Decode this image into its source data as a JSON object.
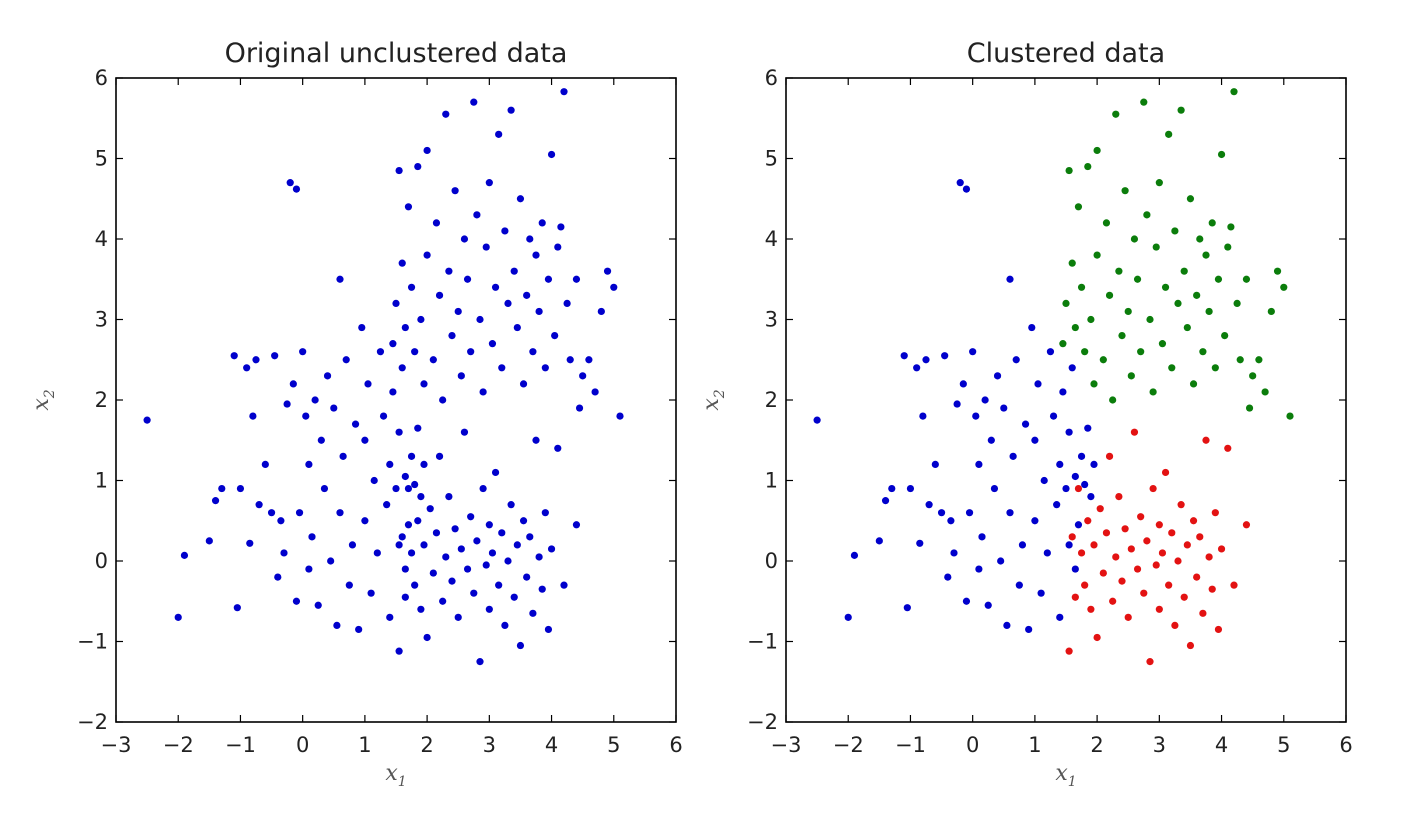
{
  "chart_data": [
    {
      "type": "scatter",
      "title": "Original unclustered data",
      "xlabel": "x1",
      "ylabel": "x2",
      "xlabel_parts": [
        "x",
        "1"
      ],
      "ylabel_parts": [
        "x",
        "2"
      ],
      "xlim": [
        -3,
        6
      ],
      "ylim": [
        -2,
        6
      ],
      "xticks": [
        "−3",
        "−2",
        "−1",
        "0",
        "1",
        "2",
        "3",
        "4",
        "5",
        "6"
      ],
      "yticks": [
        "−2",
        "−1",
        "0",
        "1",
        "2",
        "3",
        "4",
        "5",
        "6"
      ],
      "grid": false,
      "legend": "none",
      "cluster_refs": [
        "blue",
        "green",
        "red"
      ],
      "colors": {
        "blue": "#0000cc",
        "green": "#0b7d0b",
        "red": "#e31212"
      },
      "single_color": "#0000cc"
    },
    {
      "type": "scatter",
      "title": "Clustered data",
      "xlabel": "x1",
      "ylabel": "x2",
      "xlabel_parts": [
        "x",
        "1"
      ],
      "ylabel_parts": [
        "x",
        "2"
      ],
      "xlim": [
        -3,
        6
      ],
      "ylim": [
        -2,
        6
      ],
      "xticks": [
        "−3",
        "−2",
        "−1",
        "0",
        "1",
        "2",
        "3",
        "4",
        "5",
        "6"
      ],
      "yticks": [
        "−2",
        "−1",
        "0",
        "1",
        "2",
        "3",
        "4",
        "5",
        "6"
      ],
      "grid": false,
      "legend": "none",
      "series": [
        {
          "color": "#0000cc",
          "points": [
            [
              -2.5,
              1.75
            ],
            [
              -2.0,
              -0.7
            ],
            [
              -1.9,
              0.07
            ],
            [
              -1.5,
              0.25
            ],
            [
              -1.4,
              0.75
            ],
            [
              -1.3,
              0.9
            ],
            [
              -1.1,
              2.55
            ],
            [
              -1.05,
              -0.58
            ],
            [
              -1.0,
              0.9
            ],
            [
              -0.9,
              2.4
            ],
            [
              -0.85,
              0.22
            ],
            [
              -0.8,
              1.8
            ],
            [
              -0.75,
              2.5
            ],
            [
              -0.7,
              0.7
            ],
            [
              -0.6,
              1.2
            ],
            [
              -0.5,
              0.6
            ],
            [
              -0.45,
              2.55
            ],
            [
              -0.4,
              -0.2
            ],
            [
              -0.35,
              0.5
            ],
            [
              -0.3,
              0.1
            ],
            [
              -0.25,
              1.95
            ],
            [
              -0.2,
              4.7
            ],
            [
              -0.15,
              2.2
            ],
            [
              -0.1,
              4.62
            ],
            [
              -0.1,
              -0.5
            ],
            [
              -0.05,
              0.6
            ],
            [
              0.0,
              2.6
            ],
            [
              0.05,
              1.8
            ],
            [
              0.1,
              1.2
            ],
            [
              0.1,
              -0.1
            ],
            [
              0.15,
              0.3
            ],
            [
              0.2,
              2.0
            ],
            [
              0.25,
              -0.55
            ],
            [
              0.3,
              1.5
            ],
            [
              0.35,
              0.9
            ],
            [
              0.4,
              2.3
            ],
            [
              0.45,
              0.0
            ],
            [
              0.5,
              1.9
            ],
            [
              0.55,
              -0.8
            ],
            [
              0.6,
              3.5
            ],
            [
              0.6,
              0.6
            ],
            [
              0.65,
              1.3
            ],
            [
              0.7,
              2.5
            ],
            [
              0.75,
              -0.3
            ],
            [
              0.8,
              0.2
            ],
            [
              0.85,
              1.7
            ],
            [
              0.9,
              -0.85
            ],
            [
              0.95,
              2.9
            ],
            [
              1.0,
              0.5
            ],
            [
              1.0,
              1.5
            ],
            [
              1.05,
              2.2
            ],
            [
              1.1,
              -0.4
            ],
            [
              1.15,
              1.0
            ],
            [
              1.2,
              0.1
            ],
            [
              1.25,
              2.6
            ],
            [
              1.3,
              1.8
            ],
            [
              1.35,
              0.7
            ],
            [
              1.4,
              -0.7
            ],
            [
              1.4,
              1.2
            ],
            [
              1.45,
              2.1
            ],
            [
              1.5,
              0.9
            ],
            [
              1.55,
              0.2
            ],
            [
              1.55,
              1.6
            ],
            [
              1.6,
              2.4
            ],
            [
              1.65,
              -0.1
            ],
            [
              1.65,
              1.05
            ],
            [
              1.7,
              0.45
            ],
            [
              1.75,
              1.3
            ],
            [
              1.8,
              0.95
            ],
            [
              1.85,
              1.65
            ],
            [
              1.9,
              0.8
            ],
            [
              1.95,
              1.2
            ]
          ]
        },
        {
          "color": "#0b7d0b",
          "points": [
            [
              1.45,
              2.7
            ],
            [
              1.5,
              3.2
            ],
            [
              1.55,
              4.85
            ],
            [
              1.6,
              3.7
            ],
            [
              1.65,
              2.9
            ],
            [
              1.7,
              4.4
            ],
            [
              1.75,
              3.4
            ],
            [
              1.8,
              2.6
            ],
            [
              1.85,
              4.9
            ],
            [
              1.9,
              3.0
            ],
            [
              1.95,
              2.2
            ],
            [
              2.0,
              5.1
            ],
            [
              2.0,
              3.8
            ],
            [
              2.1,
              2.5
            ],
            [
              2.15,
              4.2
            ],
            [
              2.2,
              3.3
            ],
            [
              2.25,
              2.0
            ],
            [
              2.3,
              5.55
            ],
            [
              2.35,
              3.6
            ],
            [
              2.4,
              2.8
            ],
            [
              2.45,
              4.6
            ],
            [
              2.5,
              3.1
            ],
            [
              2.55,
              2.3
            ],
            [
              2.6,
              4.0
            ],
            [
              2.65,
              3.5
            ],
            [
              2.7,
              2.6
            ],
            [
              2.75,
              5.7
            ],
            [
              2.8,
              4.3
            ],
            [
              2.85,
              3.0
            ],
            [
              2.9,
              2.1
            ],
            [
              2.95,
              3.9
            ],
            [
              3.0,
              4.7
            ],
            [
              3.05,
              2.7
            ],
            [
              3.1,
              3.4
            ],
            [
              3.15,
              5.3
            ],
            [
              3.2,
              2.4
            ],
            [
              3.25,
              4.1
            ],
            [
              3.3,
              3.2
            ],
            [
              3.35,
              5.6
            ],
            [
              3.4,
              3.6
            ],
            [
              3.45,
              2.9
            ],
            [
              3.5,
              4.5
            ],
            [
              3.55,
              2.2
            ],
            [
              3.6,
              3.3
            ],
            [
              3.65,
              4.0
            ],
            [
              3.7,
              2.6
            ],
            [
              3.75,
              3.8
            ],
            [
              3.8,
              3.1
            ],
            [
              3.85,
              4.2
            ],
            [
              3.9,
              2.4
            ],
            [
              3.95,
              3.5
            ],
            [
              4.0,
              5.05
            ],
            [
              4.05,
              2.8
            ],
            [
              4.1,
              3.9
            ],
            [
              4.15,
              4.15
            ],
            [
              4.2,
              5.83
            ],
            [
              4.25,
              3.2
            ],
            [
              4.3,
              2.5
            ],
            [
              4.4,
              3.5
            ],
            [
              4.45,
              1.9
            ],
            [
              4.5,
              2.3
            ],
            [
              4.6,
              2.5
            ],
            [
              4.7,
              2.1
            ],
            [
              4.8,
              3.1
            ],
            [
              4.9,
              3.6
            ],
            [
              5.0,
              3.4
            ],
            [
              5.1,
              1.8
            ]
          ]
        },
        {
          "color": "#e31212",
          "points": [
            [
              1.55,
              -1.12
            ],
            [
              1.6,
              0.3
            ],
            [
              1.65,
              -0.45
            ],
            [
              1.7,
              0.9
            ],
            [
              1.75,
              0.1
            ],
            [
              1.8,
              -0.3
            ],
            [
              1.85,
              0.5
            ],
            [
              1.9,
              -0.6
            ],
            [
              1.95,
              0.2
            ],
            [
              2.0,
              -0.95
            ],
            [
              2.05,
              0.65
            ],
            [
              2.1,
              -0.15
            ],
            [
              2.15,
              0.35
            ],
            [
              2.2,
              1.3
            ],
            [
              2.25,
              -0.5
            ],
            [
              2.3,
              0.05
            ],
            [
              2.35,
              0.8
            ],
            [
              2.4,
              -0.25
            ],
            [
              2.45,
              0.4
            ],
            [
              2.5,
              -0.7
            ],
            [
              2.55,
              0.15
            ],
            [
              2.6,
              1.6
            ],
            [
              2.65,
              -0.1
            ],
            [
              2.7,
              0.55
            ],
            [
              2.75,
              -0.4
            ],
            [
              2.8,
              0.25
            ],
            [
              2.85,
              -1.25
            ],
            [
              2.9,
              0.9
            ],
            [
              2.95,
              -0.05
            ],
            [
              3.0,
              0.45
            ],
            [
              3.0,
              -0.6
            ],
            [
              3.05,
              0.1
            ],
            [
              3.1,
              1.1
            ],
            [
              3.15,
              -0.3
            ],
            [
              3.2,
              0.35
            ],
            [
              3.25,
              -0.8
            ],
            [
              3.3,
              0.0
            ],
            [
              3.35,
              0.7
            ],
            [
              3.4,
              -0.45
            ],
            [
              3.45,
              0.2
            ],
            [
              3.5,
              -1.05
            ],
            [
              3.55,
              0.5
            ],
            [
              3.6,
              -0.2
            ],
            [
              3.65,
              0.3
            ],
            [
              3.7,
              -0.65
            ],
            [
              3.75,
              1.5
            ],
            [
              3.8,
              0.05
            ],
            [
              3.85,
              -0.35
            ],
            [
              3.9,
              0.6
            ],
            [
              3.95,
              -0.85
            ],
            [
              4.0,
              0.15
            ],
            [
              4.1,
              1.4
            ],
            [
              4.2,
              -0.3
            ],
            [
              4.4,
              0.45
            ]
          ]
        }
      ]
    }
  ]
}
